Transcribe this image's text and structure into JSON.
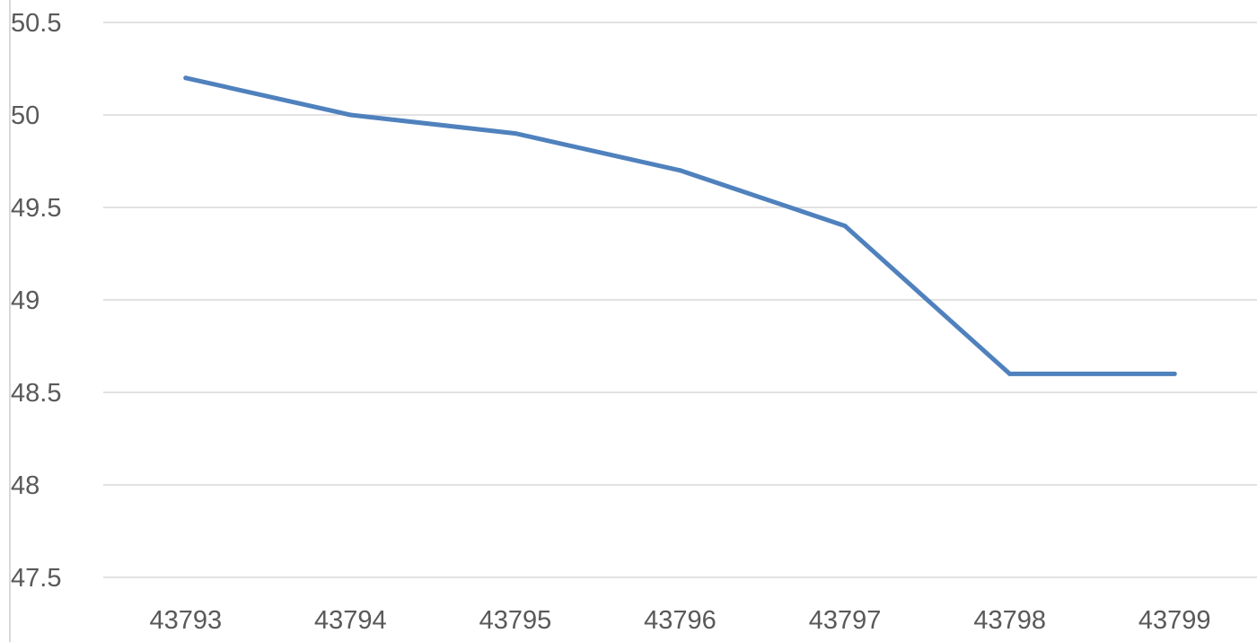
{
  "chart_data": {
    "type": "line",
    "title": "",
    "xlabel": "",
    "ylabel": "",
    "x": [
      "43793",
      "43794",
      "43795",
      "43796",
      "43797",
      "43798",
      "43799"
    ],
    "series": [
      {
        "values": [
          50.2,
          50.0,
          49.9,
          49.7,
          49.4,
          48.6,
          48.6
        ]
      }
    ],
    "ylim": [
      47.5,
      50.5
    ],
    "yticks": [
      "47.5",
      "48",
      "48.5",
      "49",
      "49.5",
      "50",
      "50.5"
    ],
    "grid": true,
    "legend": "none",
    "colors": {
      "line": "#4f81bd",
      "grid": "#d9d9d9",
      "axis": "#d9d9d9",
      "text": "#595959"
    }
  }
}
